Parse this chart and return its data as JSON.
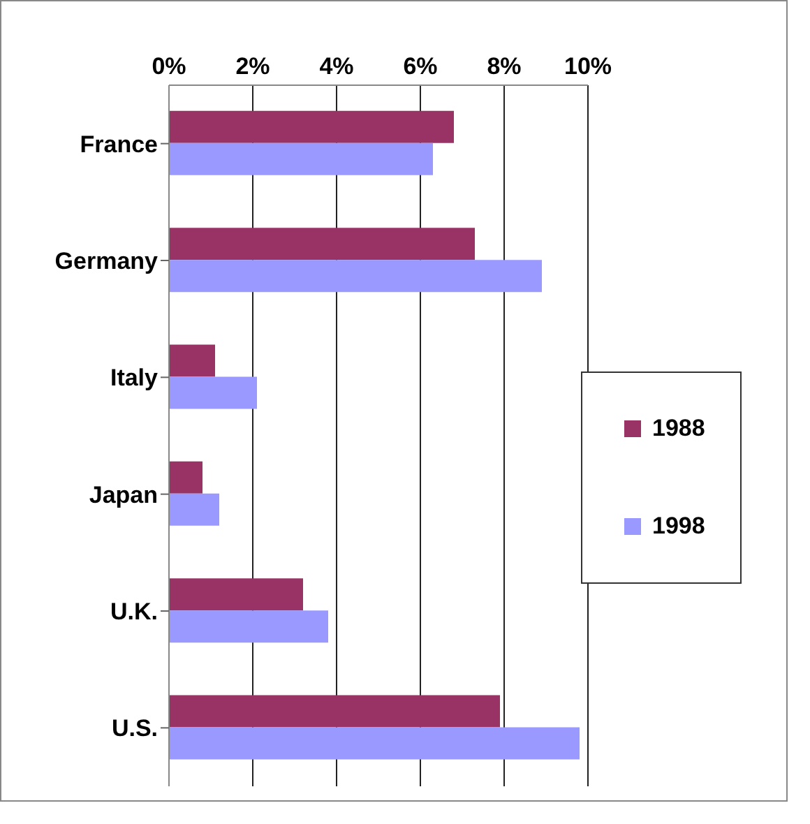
{
  "chart_data": {
    "type": "bar",
    "orientation": "horizontal",
    "categories": [
      "France",
      "Germany",
      "Italy",
      "Japan",
      "U.K.",
      "U.S."
    ],
    "series": [
      {
        "name": "1988",
        "color": "#993366",
        "values": [
          6.8,
          7.3,
          1.1,
          0.8,
          3.2,
          7.9
        ]
      },
      {
        "name": "1998",
        "color": "#9999ff",
        "values": [
          6.3,
          8.9,
          2.1,
          1.2,
          3.8,
          9.8
        ]
      }
    ],
    "xlim": [
      0,
      10
    ],
    "xticks": [
      {
        "value": 0,
        "label": "0%"
      },
      {
        "value": 2,
        "label": "2%"
      },
      {
        "value": 4,
        "label": "4%"
      },
      {
        "value": 6,
        "label": "6%"
      },
      {
        "value": 8,
        "label": "8%"
      },
      {
        "value": 10,
        "label": "10%"
      }
    ],
    "grid": "x",
    "legend": "right"
  }
}
